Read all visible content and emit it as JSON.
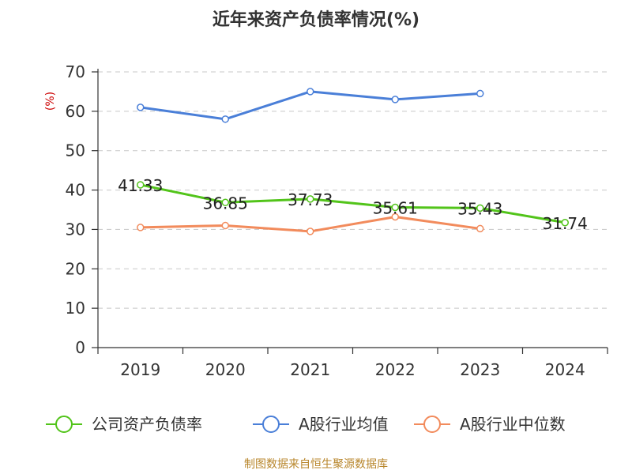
{
  "chart_data": {
    "type": "line",
    "title": "近年来资产负债率情况(%)",
    "ylabel": "(%)",
    "categories": [
      "2019",
      "2020",
      "2021",
      "2022",
      "2023",
      "2024"
    ],
    "ylim": [
      0,
      70
    ],
    "yticks": [
      0,
      10,
      20,
      30,
      40,
      50,
      60,
      70
    ],
    "grid": true,
    "legend_position": "bottom",
    "series": [
      {
        "name": "公司资产负债率",
        "color": "#52c41a",
        "values": [
          41.33,
          36.85,
          37.73,
          35.61,
          35.43,
          31.74
        ],
        "labels": [
          "41.33",
          "36.85",
          "37.73",
          "35.61",
          "35.43",
          "31.74"
        ]
      },
      {
        "name": "A股行业均值",
        "color": "#4a7fd8",
        "values": [
          61,
          58,
          65,
          63,
          64.5,
          null
        ]
      },
      {
        "name": "A股行业中位数",
        "color": "#f28b5c",
        "values": [
          30.5,
          31,
          29.5,
          33.2,
          30.2,
          null
        ]
      }
    ],
    "source": "制图数据来自恒生聚源数据库"
  }
}
